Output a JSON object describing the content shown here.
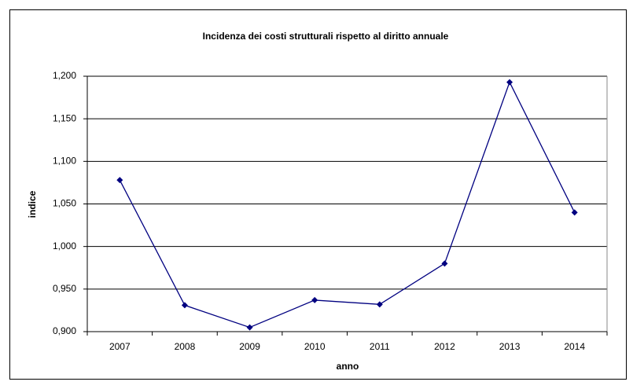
{
  "chart_data": {
    "type": "line",
    "title": "Incidenza dei costi strutturali rispetto al diritto annuale",
    "x_label": "anno",
    "y_label": "indice",
    "categories": [
      "2007",
      "2008",
      "2009",
      "2010",
      "2011",
      "2012",
      "2013",
      "2014"
    ],
    "series": [
      {
        "color": "#000080",
        "values": [
          1.078,
          0.931,
          0.905,
          0.937,
          0.932,
          0.98,
          1.193,
          1.04
        ]
      }
    ],
    "ylim": [
      0.9,
      1.2
    ],
    "yticks": [
      {
        "value": 0.9,
        "label": "0,900"
      },
      {
        "value": 0.95,
        "label": "0,950"
      },
      {
        "value": 1.0,
        "label": "1,000"
      },
      {
        "value": 1.05,
        "label": "1,050"
      },
      {
        "value": 1.1,
        "label": "1,100"
      },
      {
        "value": 1.15,
        "label": "1,150"
      },
      {
        "value": 1.2,
        "label": "1,200"
      }
    ],
    "grid": true
  }
}
